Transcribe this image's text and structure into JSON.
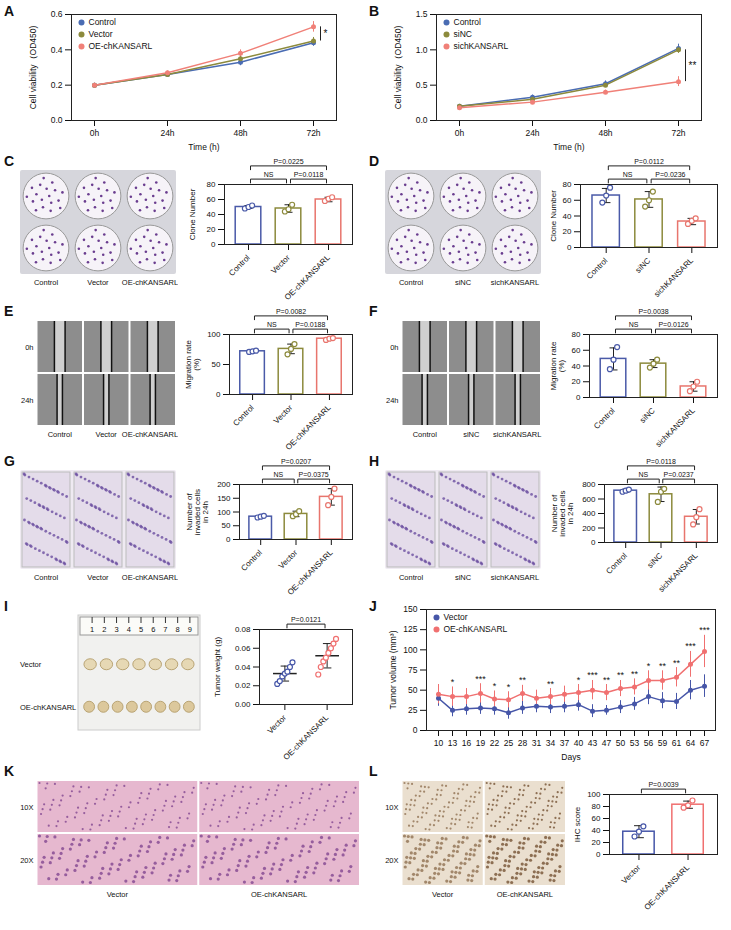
{
  "chart_data": [
    {
      "panel": "A",
      "type": "line",
      "x_label": "Time (h)",
      "y_label": "Cell viability（OD450)",
      "categories": [
        "0h",
        "24h",
        "48h",
        "72h"
      ],
      "ylim": [
        0,
        0.6
      ],
      "yticks": [
        {
          "value": 0,
          "label": "0.0"
        },
        {
          "value": 0.2,
          "label": "0.2"
        },
        {
          "value": 0.4,
          "label": "0.4"
        },
        {
          "value": 0.6,
          "label": "0.6"
        }
      ],
      "legend": "top-left",
      "marker": "circle",
      "series": [
        {
          "name": "Control",
          "color": "#4a6cb3",
          "values": [
            0.2,
            0.26,
            0.33,
            0.44
          ],
          "errors": [
            0.01,
            0.01,
            0.02,
            0.02
          ]
        },
        {
          "name": "Vector",
          "color": "#8c8a3c",
          "values": [
            0.2,
            0.26,
            0.35,
            0.45
          ],
          "errors": [
            0.01,
            0.01,
            0.02,
            0.02
          ]
        },
        {
          "name": "OE-chKANSARL",
          "color": "#f08078",
          "values": [
            0.2,
            0.27,
            0.38,
            0.53
          ],
          "errors": [
            0.01,
            0.01,
            0.02,
            0.03
          ]
        }
      ],
      "annotations": [
        {
          "text": "*",
          "x": "72h",
          "between": [
            "Vector",
            "OE-chKANSARL"
          ]
        }
      ]
    },
    {
      "panel": "B",
      "type": "line",
      "x_label": "Time (h)",
      "y_label": "Cell viability（OD450)",
      "categories": [
        "0h",
        "24h",
        "48h",
        "72h"
      ],
      "ylim": [
        0,
        1.5
      ],
      "yticks": [
        {
          "value": 0,
          "label": "0.0"
        },
        {
          "value": 0.5,
          "label": "0.5"
        },
        {
          "value": 1,
          "label": "1.0"
        },
        {
          "value": 1.5,
          "label": "1.5"
        }
      ],
      "legend": "top-left",
      "marker": "circle",
      "series": [
        {
          "name": "Control",
          "color": "#4a6cb3",
          "values": [
            0.2,
            0.33,
            0.52,
            1.02
          ],
          "errors": [
            0.02,
            0.03,
            0.04,
            0.06
          ]
        },
        {
          "name": "siNC",
          "color": "#8c8a3c",
          "values": [
            0.2,
            0.3,
            0.5,
            1.0
          ],
          "errors": [
            0.02,
            0.03,
            0.03,
            0.05
          ]
        },
        {
          "name": "sichKANSARL",
          "color": "#f08078",
          "values": [
            0.18,
            0.26,
            0.4,
            0.55
          ],
          "errors": [
            0.02,
            0.02,
            0.03,
            0.07
          ]
        }
      ],
      "annotations": [
        {
          "text": "**",
          "x": "72h",
          "between": [
            "siNC",
            "sichKANSARL"
          ]
        }
      ]
    },
    {
      "panel": "C",
      "type": "bar",
      "image_columns": [
        "Control",
        "Vector",
        "OE-chKANSARL"
      ],
      "y_label": "Clone Number",
      "categories": [
        "Control",
        "Vector",
        "OE-chKANSARL"
      ],
      "colors": [
        "#4a5aa8",
        "#8c8a3c",
        "#e8756d"
      ],
      "values": [
        50,
        48,
        60
      ],
      "errors": [
        2,
        5,
        3
      ],
      "points": [
        [
          48,
          50,
          52
        ],
        [
          44,
          47,
          53
        ],
        [
          58,
          61,
          63
        ]
      ],
      "ylim": [
        0,
        80
      ],
      "yticks": [
        0,
        20,
        40,
        60,
        80
      ],
      "annotations": [
        {
          "text": "P=0.0225",
          "between": [
            "Control",
            "OE-chKANSARL"
          ]
        },
        {
          "text": "NS",
          "between": [
            "Control",
            "Vector"
          ]
        },
        {
          "text": "P=0.0118",
          "between": [
            "Vector",
            "OE-chKANSARL"
          ]
        }
      ]
    },
    {
      "panel": "D",
      "type": "bar",
      "image_columns": [
        "Control",
        "siNC",
        "sichKANSARL"
      ],
      "y_label": "Clone Number",
      "categories": [
        "Control",
        "siNC",
        "sichKANSARL"
      ],
      "colors": [
        "#4a5aa8",
        "#8c8a3c",
        "#e8756d"
      ],
      "values": [
        66,
        61,
        33
      ],
      "errors": [
        9,
        10,
        4
      ],
      "points": [
        [
          57,
          66,
          76
        ],
        [
          52,
          60,
          71
        ],
        [
          30,
          34,
          37
        ]
      ],
      "ylim": [
        0,
        80
      ],
      "yticks": [
        0,
        20,
        40,
        60,
        80
      ],
      "annotations": [
        {
          "text": "P=0.0112",
          "between": [
            "Control",
            "sichKANSARL"
          ]
        },
        {
          "text": "NS",
          "between": [
            "Control",
            "siNC"
          ]
        },
        {
          "text": "P=0.0236",
          "between": [
            "siNC",
            "sichKANSARL"
          ]
        }
      ]
    },
    {
      "panel": "E",
      "type": "bar",
      "image_rows": [
        "0h",
        "24h"
      ],
      "image_columns": [
        "Control",
        "Vector",
        "OE-chKANSARL"
      ],
      "y_label": "Migration rate (%)",
      "categories": [
        "Control",
        "Vector",
        "OE-chKANSARL"
      ],
      "colors": [
        "#4a5aa8",
        "#8c8a3c",
        "#e8756d"
      ],
      "values": [
        72,
        76,
        93
      ],
      "errors": [
        1,
        8,
        2
      ],
      "points": [
        [
          71,
          72,
          73
        ],
        [
          67,
          76,
          84
        ],
        [
          91,
          93,
          94
        ]
      ],
      "ylim": [
        0,
        100
      ],
      "yticks": [
        0,
        50,
        100
      ],
      "annotations": [
        {
          "text": "P=0.0082",
          "between": [
            "Control",
            "OE-chKANSARL"
          ]
        },
        {
          "text": "NS",
          "between": [
            "Control",
            "Vector"
          ]
        },
        {
          "text": "P=0.0188",
          "between": [
            "Vector",
            "OE-chKANSARL"
          ]
        }
      ]
    },
    {
      "panel": "F",
      "type": "bar",
      "image_rows": [
        "0h",
        "24h"
      ],
      "image_columns": [
        "Control",
        "siNC",
        "sichKANSARL"
      ],
      "y_label": "Migration rate (%)",
      "categories": [
        "Control",
        "siNC",
        "sichKANSARL"
      ],
      "colors": [
        "#4a5aa8",
        "#8c8a3c",
        "#e8756d"
      ],
      "values": [
        49,
        43,
        14
      ],
      "errors": [
        14,
        5,
        6
      ],
      "points": [
        [
          36,
          48,
          64
        ],
        [
          38,
          43,
          48
        ],
        [
          8,
          14,
          20
        ]
      ],
      "ylim": [
        0,
        80
      ],
      "yticks": [
        0,
        20,
        40,
        60,
        80
      ],
      "annotations": [
        {
          "text": "P=0.0038",
          "between": [
            "Control",
            "sichKANSARL"
          ]
        },
        {
          "text": "NS",
          "between": [
            "Control",
            "siNC"
          ]
        },
        {
          "text": "P=0.0126",
          "between": [
            "siNC",
            "sichKANSARL"
          ]
        }
      ]
    },
    {
      "panel": "G",
      "type": "bar",
      "image_columns": [
        "Control",
        "Vector",
        "OE-chKANSARL"
      ],
      "y_label": "Number of invaded cells in 24h",
      "categories": [
        "Control",
        "Vector",
        "OE-chKANSARL"
      ],
      "colors": [
        "#4a5aa8",
        "#8c8a3c",
        "#e8756d"
      ],
      "values": [
        83,
        93,
        155
      ],
      "errors": [
        4,
        10,
        30
      ],
      "points": [
        [
          80,
          83,
          86
        ],
        [
          85,
          92,
          103
        ],
        [
          125,
          155,
          185
        ]
      ],
      "ylim": [
        0,
        200
      ],
      "yticks": [
        0,
        50,
        100,
        150,
        200
      ],
      "annotations": [
        {
          "text": "P=0.0207",
          "between": [
            "Control",
            "OE-chKANSARL"
          ]
        },
        {
          "text": "NS",
          "between": [
            "Control",
            "Vector"
          ]
        },
        {
          "text": "P=0.0375",
          "between": [
            "Vector",
            "OE-chKANSARL"
          ]
        }
      ]
    },
    {
      "panel": "H",
      "type": "bar",
      "image_columns": [
        "Control",
        "siNC",
        "sichKANSARL"
      ],
      "y_label": "Number of invaded cells in 24h",
      "categories": [
        "Control",
        "siNC",
        "sichKANSARL"
      ],
      "colors": [
        "#4a5aa8",
        "#8c8a3c",
        "#e8756d"
      ],
      "values": [
        715,
        665,
        355
      ],
      "errors": [
        20,
        100,
        100
      ],
      "points": [
        [
          700,
          715,
          730
        ],
        [
          560,
          700,
          740
        ],
        [
          250,
          350,
          460
        ]
      ],
      "ylim": [
        0,
        800
      ],
      "yticks": [
        0,
        200,
        400,
        600,
        800
      ],
      "annotations": [
        {
          "text": "P=0.0118",
          "between": [
            "Control",
            "sichKANSARL"
          ]
        },
        {
          "text": "NS",
          "between": [
            "Control",
            "siNC"
          ]
        },
        {
          "text": "P=0.0237",
          "between": [
            "siNC",
            "sichKANSARL"
          ]
        }
      ]
    },
    {
      "panel": "I",
      "type": "dot",
      "image_rows": [
        "Vector",
        "OE-chKANSARL"
      ],
      "ruler": [
        "1",
        "2",
        "3",
        "4",
        "5",
        "6",
        "7",
        "8",
        "9"
      ],
      "y_label": "Tumor weight (g)",
      "categories": [
        "Vector",
        "OE-chKANSARL"
      ],
      "colors": [
        "#4656a8",
        "#f07070"
      ],
      "values": [
        0.033,
        0.052
      ],
      "errors": [
        0.008,
        0.013
      ],
      "points": [
        [
          0.022,
          0.025,
          0.03,
          0.033,
          0.035,
          0.04,
          0.045
        ],
        [
          0.032,
          0.04,
          0.046,
          0.05,
          0.055,
          0.06,
          0.065,
          0.07
        ]
      ],
      "ylim": [
        0,
        0.08
      ],
      "yticks": [
        {
          "value": 0,
          "label": "0.00"
        },
        {
          "value": 0.02,
          "label": "0.02"
        },
        {
          "value": 0.04,
          "label": "0.04"
        },
        {
          "value": 0.06,
          "label": "0.06"
        },
        {
          "value": 0.08,
          "label": "0.08"
        }
      ],
      "annotations": [
        {
          "text": "P=0.0121",
          "between": [
            "Vector",
            "OE-chKANSARL"
          ]
        }
      ]
    },
    {
      "panel": "J",
      "type": "line",
      "x_label": "Days",
      "y_label": "Tumor volume (mm³)",
      "categories": [
        "10",
        "13",
        "16",
        "19",
        "22",
        "25",
        "28",
        "31",
        "34",
        "37",
        "40",
        "43",
        "47",
        "50",
        "53",
        "56",
        "59",
        "61",
        "64",
        "67"
      ],
      "ylim": [
        0,
        150
      ],
      "yticks": [
        0,
        25,
        50,
        75,
        100,
        125,
        150
      ],
      "legend": "top-left",
      "marker": "circle",
      "series": [
        {
          "name": "Vector",
          "color": "#4656a8",
          "values": [
            40,
            25,
            27,
            28,
            27,
            22,
            28,
            30,
            29,
            30,
            32,
            24,
            25,
            29,
            33,
            42,
            37,
            36,
            50,
            55
          ],
          "errors": [
            10,
            8,
            8,
            8,
            8,
            8,
            8,
            8,
            8,
            8,
            8,
            8,
            6,
            8,
            8,
            10,
            10,
            10,
            12,
            14
          ]
        },
        {
          "name": "OE-chKANSARL",
          "color": "#f07070",
          "values": [
            45,
            42,
            42,
            46,
            39,
            38,
            46,
            40,
            42,
            45,
            47,
            50,
            47,
            52,
            54,
            62,
            62,
            66,
            82,
            98
          ],
          "errors": [
            12,
            12,
            10,
            12,
            10,
            10,
            10,
            10,
            10,
            10,
            10,
            12,
            10,
            10,
            10,
            12,
            12,
            12,
            16,
            20
          ]
        }
      ],
      "significance": [
        null,
        "*",
        null,
        "***",
        "*",
        "*",
        "**",
        null,
        "**",
        null,
        "*",
        "***",
        "**",
        "**",
        "**",
        "*",
        "**",
        "**",
        "***",
        "***"
      ]
    },
    {
      "panel": "K",
      "type": "image",
      "image_rows": [
        "10X",
        "20X"
      ],
      "image_columns": [
        "Vector",
        "OE-chKANSARL"
      ]
    },
    {
      "panel": "L",
      "type": "bar",
      "image_rows": [
        "10X",
        "20X"
      ],
      "image_columns": [
        "Vector",
        "OE-chKANSARL"
      ],
      "y_label": "IHC score",
      "categories": [
        "Vector",
        "OE-chKANSARL"
      ],
      "colors": [
        "#4656a8",
        "#f07070"
      ],
      "values": [
        38,
        83
      ],
      "errors": [
        10,
        6
      ],
      "points": [
        [
          30,
          38,
          47
        ],
        [
          78,
          82,
          90
        ]
      ],
      "ylim": [
        0,
        100
      ],
      "yticks": [
        0,
        20,
        40,
        60,
        80,
        100
      ],
      "annotations": [
        {
          "text": "P=0.0039",
          "between": [
            "Vector",
            "OE-chKANSARL"
          ]
        }
      ]
    }
  ]
}
